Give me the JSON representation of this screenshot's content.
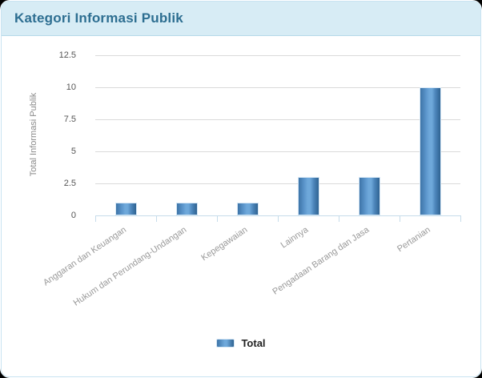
{
  "card": {
    "header": {
      "title": "Kategori Informasi Publik"
    },
    "colors": {
      "header_bg": "#d7ecf5",
      "header_border": "#b6d9e8",
      "card_border": "#c9e4f1",
      "title_text": "#2d6e91",
      "bar_edge": "#2f6392",
      "bar_center": "#6ea8da",
      "bar_stroke": "#d6e7f5",
      "gridline": "#dadada",
      "axis_line": "#c6dcea",
      "x_label_text": "#999999",
      "y_tick_text": "#555555",
      "axis_title_text": "#8a8a8a",
      "legend_text": "#222222"
    }
  },
  "chart_data": {
    "type": "bar",
    "title": "Kategori Informasi Publik",
    "categories": [
      "Anggaran dan Keuangan",
      "Hukum dan Perundang-Undangan",
      "Kepegawaian",
      "Lainnya",
      "Pengadaan Barang dan Jasa",
      "Pertanian"
    ],
    "series": [
      {
        "name": "Total",
        "values": [
          1,
          1,
          1,
          3,
          3,
          10
        ]
      }
    ],
    "xlabel": "",
    "ylabel": "Total Informasi Publik",
    "ylim": [
      0,
      12.5
    ],
    "yticks": [
      0,
      2.5,
      5,
      7.5,
      10,
      12.5
    ],
    "grid": true,
    "legend_position": "bottom"
  }
}
